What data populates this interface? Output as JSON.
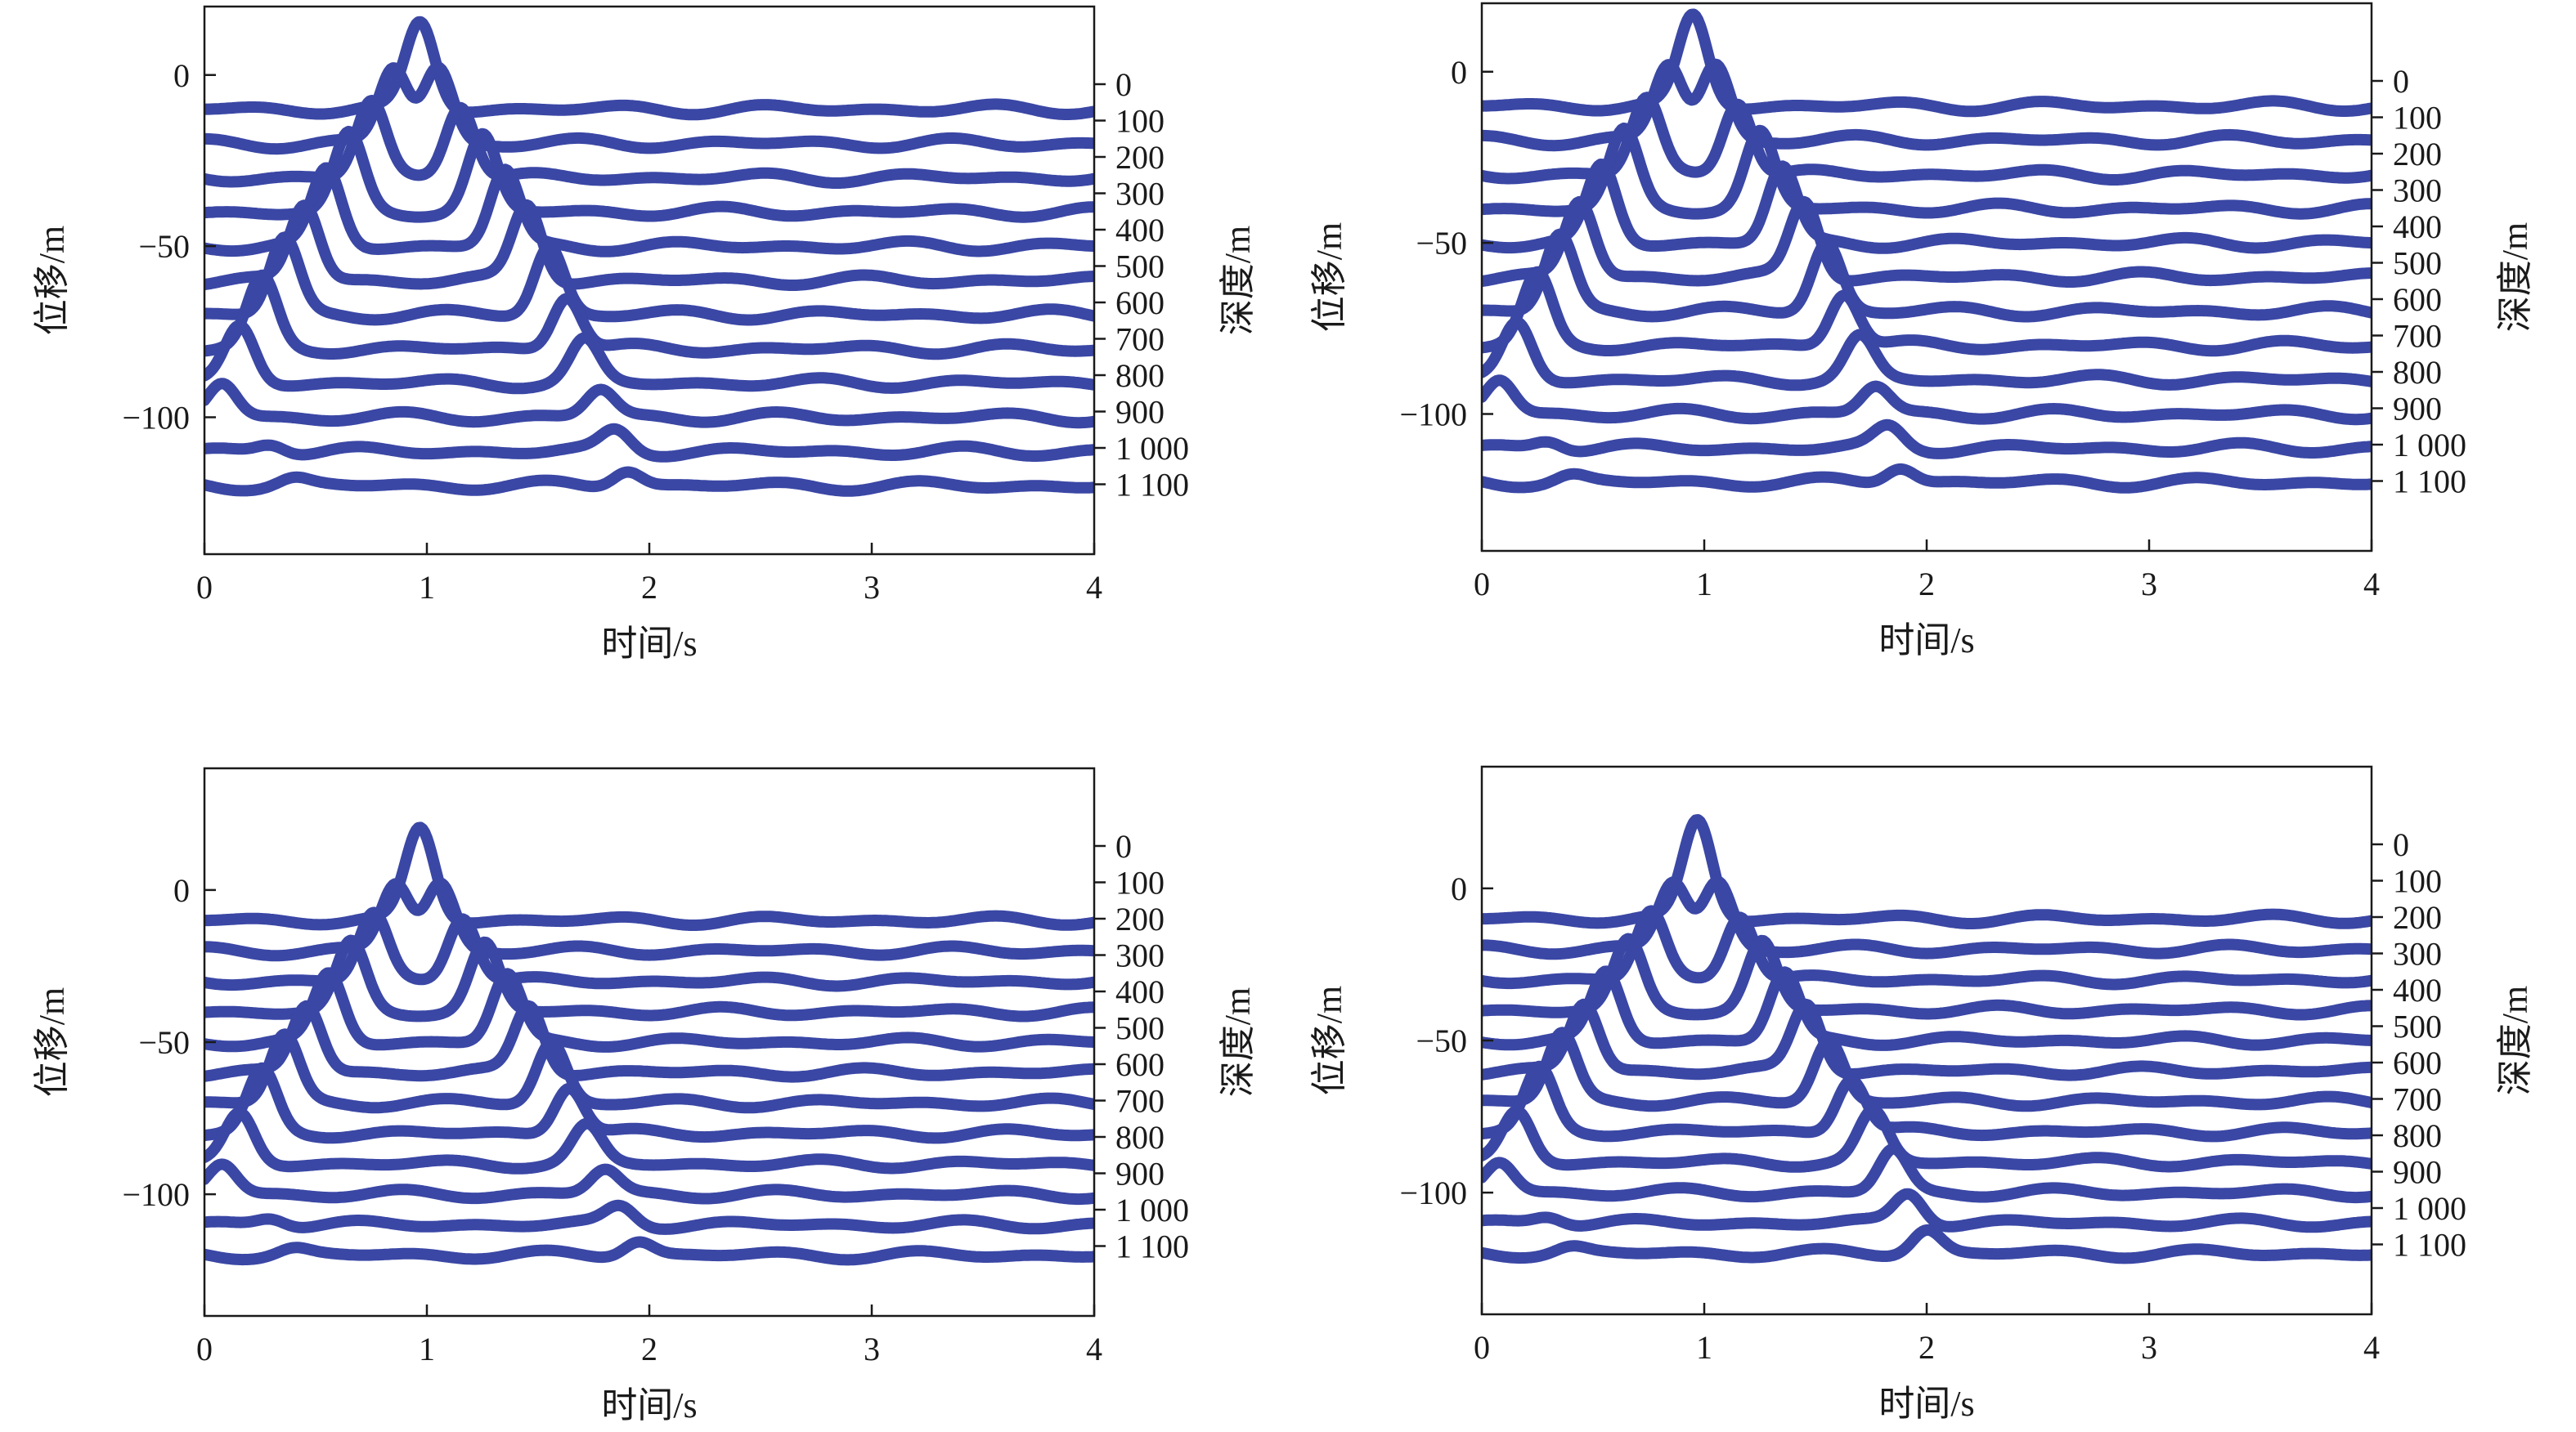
{
  "trace_color": "#3a47a5",
  "chart_data": [
    {
      "type": "line",
      "xlabel": "时间/s",
      "ylabel": "位移/m",
      "y2label": "深度/m",
      "xlim": [
        0,
        4
      ],
      "ylim": [
        -140,
        20
      ],
      "xticks": [
        0,
        1,
        2,
        3,
        4
      ],
      "xtick_labels": [
        "0",
        "1",
        "2",
        "3",
        "4"
      ],
      "yticks": [
        0,
        -50,
        -100
      ],
      "ytick_labels": [
        "0",
        "−50",
        "−100"
      ],
      "depth_labels": [
        "0",
        "100",
        "200",
        "300",
        "400",
        "500",
        "600",
        "700",
        "800",
        "900",
        "1 000",
        "1 100"
      ],
      "series": [
        {
          "depth": 0,
          "baseline": -10,
          "up_pulse_t": 0.97,
          "up_amp": 25,
          "down_pulse_t": 0.97,
          "down_amp": 0
        },
        {
          "depth": 100,
          "baseline": -20,
          "up_pulse_t": 0.85,
          "up_amp": 22,
          "down_pulse_t": 1.05,
          "down_amp": 22
        },
        {
          "depth": 200,
          "baseline": -30,
          "up_pulse_t": 0.75,
          "up_amp": 22,
          "down_pulse_t": 1.15,
          "down_amp": 22
        },
        {
          "depth": 300,
          "baseline": -40,
          "up_pulse_t": 0.65,
          "up_amp": 22,
          "down_pulse_t": 1.25,
          "down_amp": 22
        },
        {
          "depth": 400,
          "baseline": -50,
          "up_pulse_t": 0.55,
          "up_amp": 22,
          "down_pulse_t": 1.35,
          "down_amp": 22
        },
        {
          "depth": 500,
          "baseline": -60,
          "up_pulse_t": 0.45,
          "up_amp": 22,
          "down_pulse_t": 1.45,
          "down_amp": 22
        },
        {
          "depth": 600,
          "baseline": -70,
          "up_pulse_t": 0.36,
          "up_amp": 22,
          "down_pulse_t": 1.55,
          "down_amp": 20
        },
        {
          "depth": 700,
          "baseline": -80,
          "up_pulse_t": 0.26,
          "up_amp": 20,
          "down_pulse_t": 1.63,
          "down_amp": 16
        },
        {
          "depth": 800,
          "baseline": -90,
          "up_pulse_t": 0.16,
          "up_amp": 16,
          "down_pulse_t": 1.71,
          "down_amp": 12
        },
        {
          "depth": 900,
          "baseline": -100,
          "up_pulse_t": 0.08,
          "up_amp": 10,
          "down_pulse_t": 1.78,
          "down_amp": 8
        },
        {
          "depth": 1000,
          "baseline": -110,
          "up_pulse_t": 0.3,
          "up_amp": 3,
          "down_pulse_t": 1.85,
          "down_amp": 6
        },
        {
          "depth": 1100,
          "baseline": -120,
          "up_pulse_t": 0.4,
          "up_amp": 2,
          "down_pulse_t": 1.9,
          "down_amp": 5
        }
      ]
    },
    {
      "type": "line",
      "xlabel": "时间/s",
      "ylabel": "位移/m",
      "y2label": "深度/m",
      "xlim": [
        0,
        4
      ],
      "ylim": [
        -140,
        20
      ],
      "xticks": [
        0,
        1,
        2,
        3,
        4
      ],
      "xtick_labels": [
        "0",
        "1",
        "2",
        "3",
        "4"
      ],
      "yticks": [
        0,
        -50,
        -100
      ],
      "ytick_labels": [
        "0",
        "−50",
        "−100"
      ],
      "depth_labels": [
        "0",
        "100",
        "200",
        "300",
        "400",
        "500",
        "600",
        "700",
        "800",
        "900",
        "1 000",
        "1 100"
      ],
      "series": [
        {
          "depth": 0,
          "baseline": -10,
          "up_pulse_t": 0.95,
          "up_amp": 26,
          "down_pulse_t": 0.95,
          "down_amp": 0
        },
        {
          "depth": 100,
          "baseline": -20,
          "up_pulse_t": 0.84,
          "up_amp": 22,
          "down_pulse_t": 1.05,
          "down_amp": 22
        },
        {
          "depth": 200,
          "baseline": -30,
          "up_pulse_t": 0.74,
          "up_amp": 22,
          "down_pulse_t": 1.15,
          "down_amp": 22
        },
        {
          "depth": 300,
          "baseline": -40,
          "up_pulse_t": 0.64,
          "up_amp": 22,
          "down_pulse_t": 1.25,
          "down_amp": 22
        },
        {
          "depth": 400,
          "baseline": -50,
          "up_pulse_t": 0.54,
          "up_amp": 22,
          "down_pulse_t": 1.35,
          "down_amp": 22
        },
        {
          "depth": 500,
          "baseline": -60,
          "up_pulse_t": 0.44,
          "up_amp": 22,
          "down_pulse_t": 1.45,
          "down_amp": 22
        },
        {
          "depth": 600,
          "baseline": -70,
          "up_pulse_t": 0.35,
          "up_amp": 22,
          "down_pulse_t": 1.55,
          "down_amp": 20
        },
        {
          "depth": 700,
          "baseline": -80,
          "up_pulse_t": 0.25,
          "up_amp": 20,
          "down_pulse_t": 1.63,
          "down_amp": 16
        },
        {
          "depth": 800,
          "baseline": -90,
          "up_pulse_t": 0.16,
          "up_amp": 16,
          "down_pulse_t": 1.7,
          "down_amp": 12
        },
        {
          "depth": 900,
          "baseline": -100,
          "up_pulse_t": 0.08,
          "up_amp": 10,
          "down_pulse_t": 1.77,
          "down_amp": 8
        },
        {
          "depth": 1000,
          "baseline": -110,
          "up_pulse_t": 0.3,
          "up_amp": 3,
          "down_pulse_t": 1.83,
          "down_amp": 6
        },
        {
          "depth": 1100,
          "baseline": -120,
          "up_pulse_t": 0.4,
          "up_amp": 2,
          "down_pulse_t": 1.88,
          "down_amp": 5
        }
      ]
    },
    {
      "type": "line",
      "xlabel": "时间/s",
      "ylabel": "位移/m",
      "y2label": "深度/m",
      "xlim": [
        0,
        4
      ],
      "ylim": [
        -140,
        40
      ],
      "xticks": [
        0,
        1,
        2,
        3,
        4
      ],
      "xtick_labels": [
        "0",
        "1",
        "2",
        "3",
        "4"
      ],
      "yticks": [
        0,
        -50,
        -100
      ],
      "ytick_labels": [
        "0",
        "−50",
        "−100"
      ],
      "depth_labels": [
        "0",
        "100",
        "200",
        "300",
        "400",
        "500",
        "600",
        "700",
        "800",
        "900",
        "1 000",
        "1 100"
      ],
      "series": [
        {
          "depth": 0,
          "baseline": -10,
          "up_pulse_t": 0.97,
          "up_amp": 30,
          "down_pulse_t": 0.97,
          "down_amp": 0
        },
        {
          "depth": 100,
          "baseline": -20,
          "up_pulse_t": 0.86,
          "up_amp": 22,
          "down_pulse_t": 1.06,
          "down_amp": 22
        },
        {
          "depth": 200,
          "baseline": -30,
          "up_pulse_t": 0.76,
          "up_amp": 22,
          "down_pulse_t": 1.16,
          "down_amp": 22
        },
        {
          "depth": 300,
          "baseline": -40,
          "up_pulse_t": 0.66,
          "up_amp": 22,
          "down_pulse_t": 1.26,
          "down_amp": 22
        },
        {
          "depth": 400,
          "baseline": -50,
          "up_pulse_t": 0.56,
          "up_amp": 22,
          "down_pulse_t": 1.36,
          "down_amp": 22
        },
        {
          "depth": 500,
          "baseline": -60,
          "up_pulse_t": 0.46,
          "up_amp": 22,
          "down_pulse_t": 1.46,
          "down_amp": 22
        },
        {
          "depth": 600,
          "baseline": -70,
          "up_pulse_t": 0.36,
          "up_amp": 22,
          "down_pulse_t": 1.56,
          "down_amp": 20
        },
        {
          "depth": 700,
          "baseline": -80,
          "up_pulse_t": 0.26,
          "up_amp": 20,
          "down_pulse_t": 1.64,
          "down_amp": 16
        },
        {
          "depth": 800,
          "baseline": -90,
          "up_pulse_t": 0.16,
          "up_amp": 16,
          "down_pulse_t": 1.72,
          "down_amp": 12
        },
        {
          "depth": 900,
          "baseline": -100,
          "up_pulse_t": 0.08,
          "up_amp": 10,
          "down_pulse_t": 1.8,
          "down_amp": 8
        },
        {
          "depth": 1000,
          "baseline": -110,
          "up_pulse_t": 0.3,
          "up_amp": 3,
          "down_pulse_t": 1.87,
          "down_amp": 6
        },
        {
          "depth": 1100,
          "baseline": -120,
          "up_pulse_t": 0.4,
          "up_amp": 2,
          "down_pulse_t": 1.95,
          "down_amp": 5
        }
      ]
    },
    {
      "type": "line",
      "xlabel": "时间/s",
      "ylabel": "位移/m",
      "y2label": "深度/m",
      "xlim": [
        0,
        4
      ],
      "ylim": [
        -140,
        40
      ],
      "xticks": [
        0,
        1,
        2,
        3,
        4
      ],
      "xtick_labels": [
        "0",
        "1",
        "2",
        "3",
        "4"
      ],
      "yticks": [
        0,
        -50,
        -100
      ],
      "ytick_labels": [
        "0",
        "−50",
        "−100"
      ],
      "depth_labels": [
        "0",
        "100",
        "200",
        "300",
        "400",
        "500",
        "600",
        "700",
        "800",
        "900",
        "1 000",
        "1 100"
      ],
      "series": [
        {
          "depth": 0,
          "baseline": -10,
          "up_pulse_t": 0.97,
          "up_amp": 32,
          "down_pulse_t": 0.97,
          "down_amp": 0
        },
        {
          "depth": 100,
          "baseline": -20,
          "up_pulse_t": 0.86,
          "up_amp": 22,
          "down_pulse_t": 1.06,
          "down_amp": 22
        },
        {
          "depth": 200,
          "baseline": -30,
          "up_pulse_t": 0.76,
          "up_amp": 22,
          "down_pulse_t": 1.16,
          "down_amp": 22
        },
        {
          "depth": 300,
          "baseline": -40,
          "up_pulse_t": 0.66,
          "up_amp": 22,
          "down_pulse_t": 1.26,
          "down_amp": 22
        },
        {
          "depth": 400,
          "baseline": -50,
          "up_pulse_t": 0.56,
          "up_amp": 22,
          "down_pulse_t": 1.36,
          "down_amp": 22
        },
        {
          "depth": 500,
          "baseline": -60,
          "up_pulse_t": 0.46,
          "up_amp": 22,
          "down_pulse_t": 1.46,
          "down_amp": 22
        },
        {
          "depth": 600,
          "baseline": -70,
          "up_pulse_t": 0.36,
          "up_amp": 22,
          "down_pulse_t": 1.56,
          "down_amp": 20
        },
        {
          "depth": 700,
          "baseline": -80,
          "up_pulse_t": 0.26,
          "up_amp": 20,
          "down_pulse_t": 1.66,
          "down_amp": 18
        },
        {
          "depth": 800,
          "baseline": -90,
          "up_pulse_t": 0.16,
          "up_amp": 16,
          "down_pulse_t": 1.76,
          "down_amp": 16
        },
        {
          "depth": 900,
          "baseline": -100,
          "up_pulse_t": 0.08,
          "up_amp": 10,
          "down_pulse_t": 1.85,
          "down_amp": 14
        },
        {
          "depth": 1000,
          "baseline": -110,
          "up_pulse_t": 0.3,
          "up_amp": 3,
          "down_pulse_t": 1.92,
          "down_amp": 10
        },
        {
          "depth": 1100,
          "baseline": -120,
          "up_pulse_t": 0.4,
          "up_amp": 2,
          "down_pulse_t": 2.0,
          "down_amp": 8
        }
      ]
    }
  ]
}
